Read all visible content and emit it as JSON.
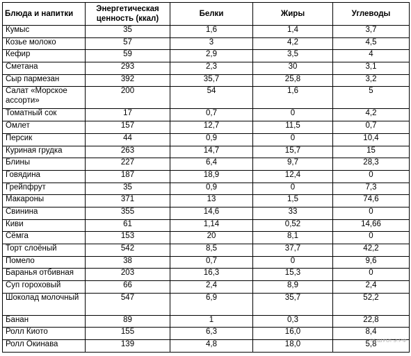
{
  "headers": [
    "Блюда и напитки",
    "Энергетическая ценность (ккал)",
    "Белки",
    "Жиры",
    "Углеводы"
  ],
  "rows": [
    [
      "Кумыс",
      "35",
      "1,6",
      "1,4",
      "3,7"
    ],
    [
      "Козье молоко",
      "57",
      "3",
      "4,2",
      "4,5"
    ],
    [
      "Кефир",
      "59",
      "2,9",
      "3,5",
      "4"
    ],
    [
      "Сметана",
      "293",
      "2,3",
      "30",
      "3,1"
    ],
    [
      "Сыр пармезан",
      "392",
      "35,7",
      "25,8",
      "3,2"
    ],
    [
      "Салат «Морское ассорти»",
      "200",
      "54",
      "1,6",
      "5"
    ],
    [
      "Томатный сок",
      "17",
      "0,7",
      "0",
      "4,2"
    ],
    [
      "Омлет",
      "157",
      "12,7",
      "11,5",
      "0,7"
    ],
    [
      "Персик",
      "44",
      "0,9",
      "0",
      "10,4"
    ],
    [
      "Куриная грудка",
      "263",
      "14,7",
      "15,7",
      "15"
    ],
    [
      "Блины",
      "227",
      "6,4",
      "9,7",
      "28,3"
    ],
    [
      "Говядина",
      "187",
      "18,9",
      "12,4",
      "0"
    ],
    [
      "Грейпфрут",
      "35",
      "0,9",
      "0",
      "7,3"
    ],
    [
      "Макароны",
      "371",
      "13",
      "1,5",
      "74,6"
    ],
    [
      "Свинина",
      "355",
      "14,6",
      "33",
      "0"
    ],
    [
      "Киви",
      "61",
      "1,14",
      "0,52",
      "14,66"
    ],
    [
      "Сёмга",
      "153",
      "20",
      "8,1",
      "0"
    ],
    [
      "Торт слоёный",
      "542",
      "8,5",
      "37,7",
      "42,2"
    ],
    [
      "Помело",
      "38",
      "0,7",
      "0",
      "9,6"
    ],
    [
      "Баранья отбивная",
      "203",
      "16,3",
      "15,3",
      "0"
    ],
    [
      "Суп гороховый",
      "66",
      "2,4",
      "8,9",
      "2,4"
    ],
    [
      "Шоколад молочный",
      "547",
      "6,9",
      "35,7",
      "52,2"
    ],
    [
      "Банан",
      "89",
      "1",
      "0,3",
      "22,8"
    ],
    [
      "Ролл Киото",
      "155",
      "6,3",
      "16,0",
      "8,4"
    ],
    [
      "Ролл Окинава",
      "139",
      "4,8",
      "18,0",
      "5,8"
    ]
  ],
  "watermark": "РЕШУОГЭ.РФ"
}
